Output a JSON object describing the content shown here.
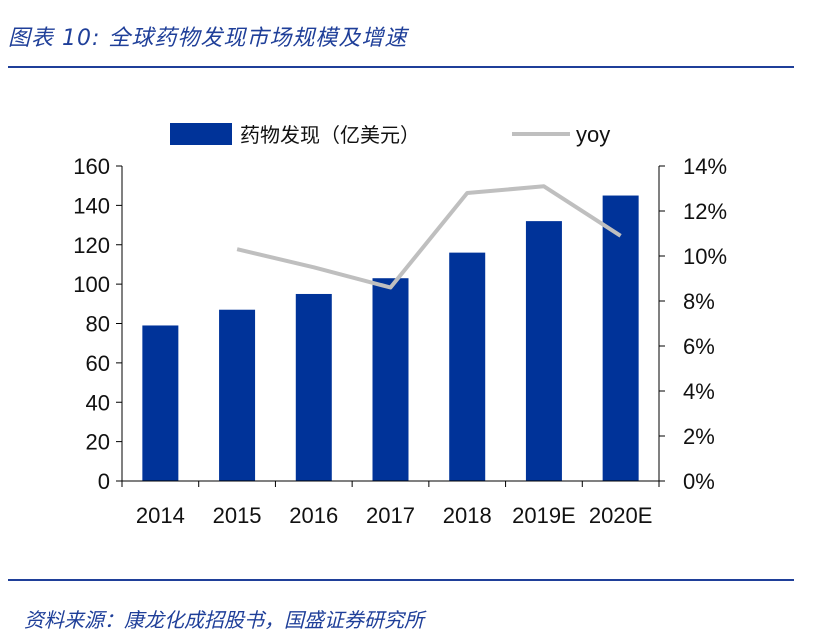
{
  "figure": {
    "title": "图表 10:  全球药物发现市场规模及增速",
    "source": "资料来源：康龙化成招股书，国盛证券研究所"
  },
  "colors": {
    "bar": "#003399",
    "line": "#bfbfbf",
    "title": "#1f3f99"
  },
  "chart_data": {
    "type": "bar",
    "categories": [
      "2014",
      "2015",
      "2016",
      "2017",
      "2018",
      "2019E",
      "2020E"
    ],
    "series": [
      {
        "name": "药物发现（亿美元）",
        "type": "bar",
        "axis": "left",
        "values": [
          79,
          87,
          95,
          103,
          116,
          132,
          145
        ]
      },
      {
        "name": "yoy",
        "type": "line",
        "axis": "right",
        "values": [
          null,
          10.3,
          9.5,
          8.6,
          12.8,
          13.1,
          10.9
        ]
      }
    ],
    "y_left": {
      "ylim": [
        0,
        160
      ],
      "ticks": [
        "0",
        "20",
        "40",
        "60",
        "80",
        "100",
        "120",
        "140",
        "160"
      ]
    },
    "y_right": {
      "ylim": [
        0,
        14
      ],
      "ticks": [
        "0%",
        "2%",
        "4%",
        "6%",
        "8%",
        "10%",
        "12%",
        "14%"
      ]
    },
    "legend": {
      "position": "top-center",
      "labels": [
        "药物发现（亿美元）",
        "yoy"
      ]
    },
    "grid": false
  }
}
